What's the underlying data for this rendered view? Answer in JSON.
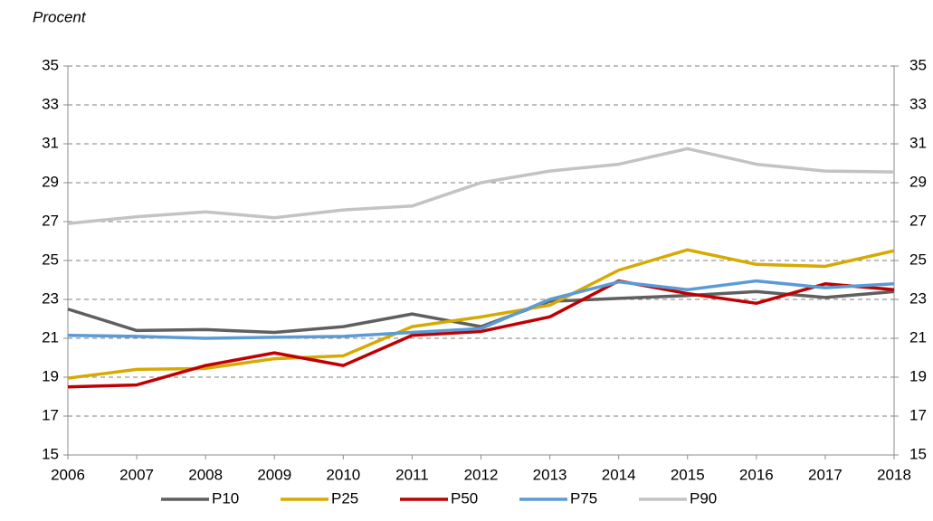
{
  "chart_data": {
    "type": "line",
    "y_label": "Procent",
    "x": [
      2006,
      2007,
      2008,
      2009,
      2010,
      2011,
      2012,
      2013,
      2014,
      2015,
      2016,
      2017,
      2018
    ],
    "xlim": [
      2006,
      2018
    ],
    "xticks": [
      2006,
      2007,
      2008,
      2009,
      2010,
      2011,
      2012,
      2013,
      2014,
      2015,
      2016,
      2017,
      2018
    ],
    "ylim": [
      15,
      35
    ],
    "yticks": [
      15,
      17,
      19,
      21,
      23,
      25,
      27,
      29,
      31,
      33,
      35
    ],
    "y2lim": [
      15,
      35
    ],
    "y2ticks": [
      15,
      17,
      19,
      21,
      23,
      25,
      27,
      29,
      31,
      33,
      35
    ],
    "grid": true,
    "legend": "bottom",
    "series": [
      {
        "name": "P10",
        "color": "#5f5f5f",
        "values": [
          22.5,
          21.4,
          21.45,
          21.3,
          21.6,
          22.25,
          21.6,
          22.9,
          23.05,
          23.2,
          23.4,
          23.1,
          23.4
        ]
      },
      {
        "name": "P25",
        "color": "#d6aa00",
        "values": [
          18.95,
          19.4,
          19.45,
          19.95,
          20.1,
          21.6,
          22.1,
          22.7,
          24.5,
          25.55,
          24.8,
          24.7,
          25.5
        ]
      },
      {
        "name": "P50",
        "color": "#c00000",
        "values": [
          18.5,
          18.6,
          19.6,
          20.25,
          19.6,
          21.15,
          21.35,
          22.1,
          23.95,
          23.3,
          22.8,
          23.8,
          23.5
        ]
      },
      {
        "name": "P75",
        "color": "#5b9bd5",
        "values": [
          21.15,
          21.1,
          21.0,
          21.05,
          21.1,
          21.3,
          21.5,
          23.0,
          23.9,
          23.5,
          23.95,
          23.6,
          23.8
        ]
      },
      {
        "name": "P90",
        "color": "#c3c3c3",
        "values": [
          26.9,
          27.25,
          27.5,
          27.2,
          27.6,
          27.8,
          29.0,
          29.6,
          29.95,
          30.75,
          29.95,
          29.6,
          29.55
        ]
      }
    ]
  }
}
